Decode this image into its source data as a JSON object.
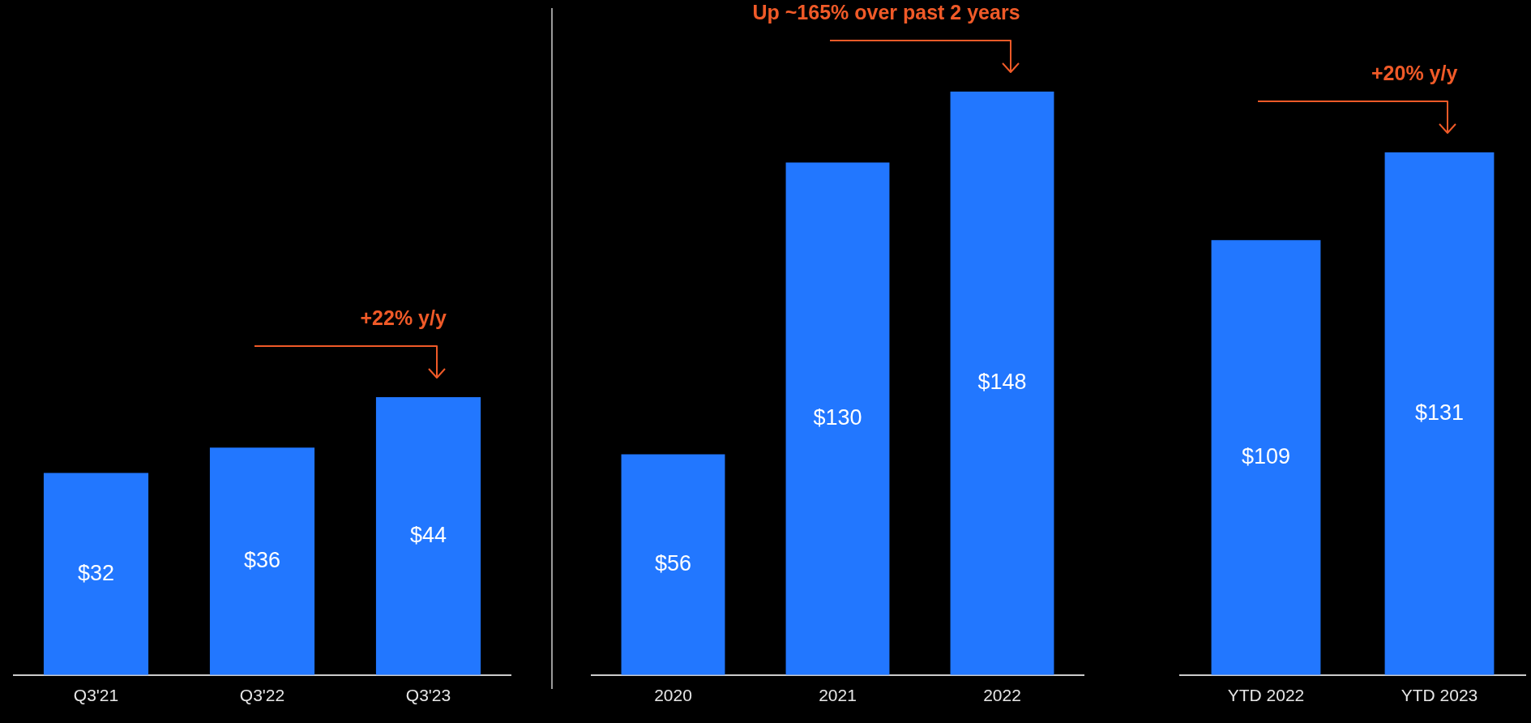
{
  "chart_data": [
    {
      "type": "bar",
      "categories": [
        "Q3'21",
        "Q3'22",
        "Q3'23"
      ],
      "values": [
        32,
        36,
        44
      ],
      "value_labels": [
        "$32",
        "$36",
        "$44"
      ],
      "color": "#2277ff",
      "annotations": [
        "+22% y/y"
      ]
    },
    {
      "type": "bar",
      "categories": [
        "2020",
        "2021",
        "2022"
      ],
      "values": [
        56,
        130,
        148
      ],
      "value_labels": [
        "$56",
        "$130",
        "$148"
      ],
      "color": "#2277ff",
      "annotations": [
        "Up ~165% over past 2 years"
      ]
    },
    {
      "type": "bar",
      "categories": [
        "YTD 2022",
        "YTD 2023"
      ],
      "values": [
        109,
        131
      ],
      "value_labels": [
        "$109",
        "$131"
      ],
      "color": "#2277ff",
      "annotations": [
        "+20% y/y"
      ]
    }
  ]
}
